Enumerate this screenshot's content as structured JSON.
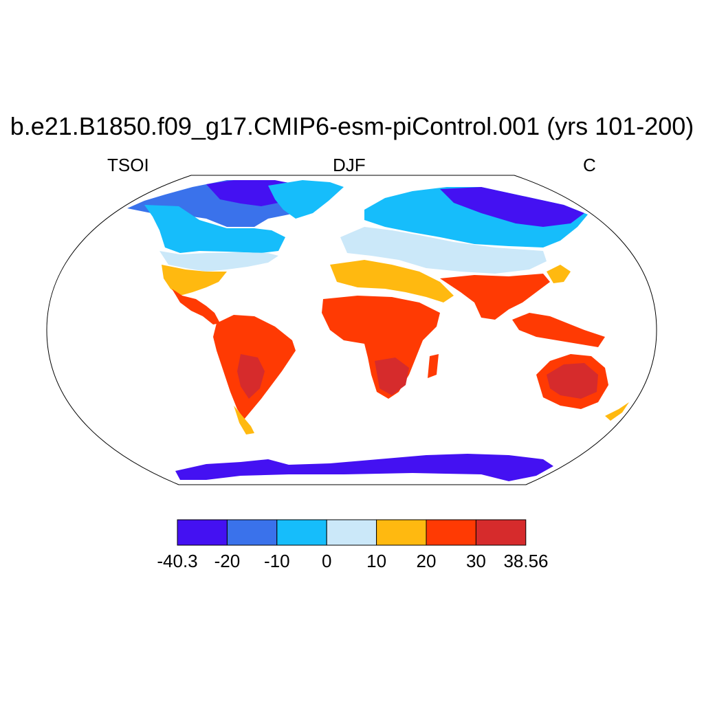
{
  "title": "b.e21.B1850.f09_g17.CMIP6-esm-piControl.001 (yrs 101-200)",
  "left_label": "TSOI",
  "center_label": "DJF",
  "right_label": "C",
  "colorbar": {
    "labels": [
      "-40.3",
      "-20",
      "-10",
      "0",
      "10",
      "20",
      "30",
      "38.56"
    ],
    "colors": [
      "#4411f2",
      "#3a72eb",
      "#16bdfb",
      "#cbe8f9",
      "#ffb910",
      "#ff3a03",
      "#d62b2c"
    ]
  },
  "map_colors": {
    "ocean": "#ffffff",
    "outline": "#000000"
  }
}
